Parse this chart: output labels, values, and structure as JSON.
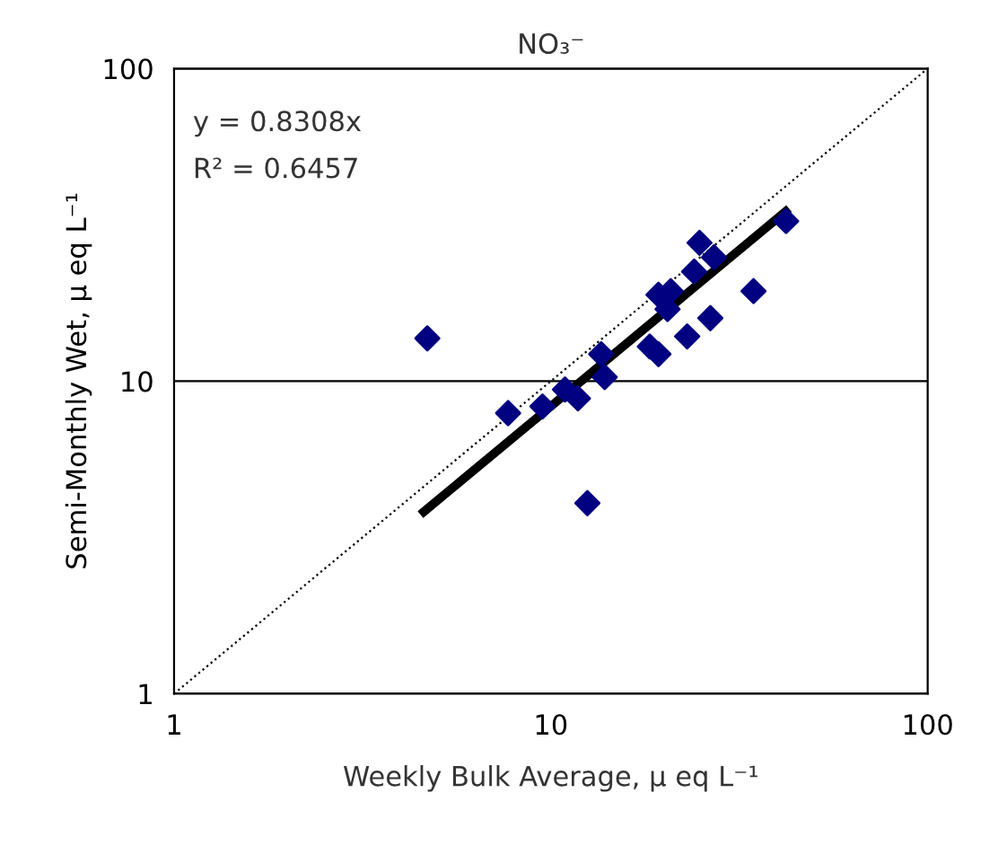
{
  "chart_data": {
    "type": "scatter",
    "title": "NO₃⁻",
    "xlabel": "Weekly Bulk Average, μ eq L⁻¹",
    "ylabel": "Semi-Monthly Wet, μ eq L⁻¹",
    "log": "xy",
    "xlim": [
      1,
      100
    ],
    "ylim": [
      1,
      100
    ],
    "xticks": [
      1,
      10,
      100
    ],
    "yticks": [
      1,
      10,
      100
    ],
    "grid": "y",
    "legend": false,
    "annotations": [
      "y = 0.8308x",
      "R² = 0.6457"
    ],
    "series": [
      {
        "marker": "diamond",
        "color": "#000080",
        "x": [
          42.1,
          24.8,
          27.1,
          24.0,
          34.5,
          19.3,
          20.8,
          20.4,
          26.5,
          23.0,
          18.3,
          19.3,
          13.6,
          13.9,
          10.9,
          11.8,
          9.5,
          7.7,
          12.5,
          4.7
        ],
        "values": [
          32.5,
          27.7,
          24.9,
          22.4,
          19.4,
          18.9,
          19.4,
          17.0,
          15.9,
          13.9,
          12.9,
          12.2,
          12.2,
          10.3,
          9.4,
          8.8,
          8.3,
          7.9,
          4.07,
          13.7
        ]
      },
      {
        "type": "line",
        "marker": "none",
        "color": "#000000",
        "line_style": "solid",
        "x": [
          4.6,
          42
        ],
        "values": [
          3.82,
          34.9
        ]
      },
      {
        "type": "line",
        "marker": "none",
        "color": "#000000",
        "line_style": "dotted",
        "x": [
          1,
          100
        ],
        "values": [
          1,
          100
        ]
      }
    ]
  }
}
